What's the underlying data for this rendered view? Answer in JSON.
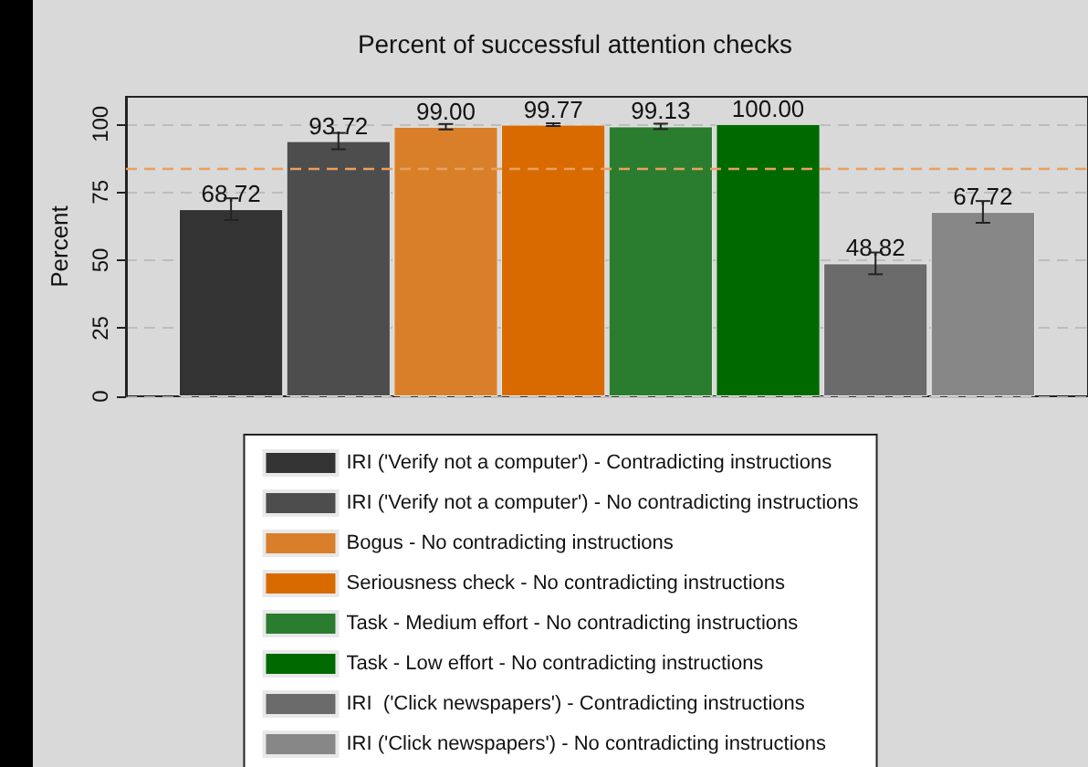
{
  "chart_data": {
    "type": "bar",
    "title": "Percent of successful attention checks",
    "ylabel": "Percent",
    "categories": [
      null
    ],
    "series": [
      {
        "name": "IRI ('Verify not a computer') - Contradicting instructions",
        "color": "#333333",
        "values": [
          68.72
        ],
        "value_labels": [
          "68.72"
        ],
        "errors": [
          4
        ]
      },
      {
        "name": "IRI ('Verify not a computer') - No contradicting instructions",
        "color": "#4d4d4d",
        "values": [
          93.72
        ],
        "value_labels": [
          "93.72"
        ],
        "errors": [
          3
        ]
      },
      {
        "name": "Bogus - No contradicting instructions",
        "color": "#d97f2a",
        "values": [
          99.0
        ],
        "value_labels": [
          "99.00"
        ],
        "errors": [
          1
        ]
      },
      {
        "name": "Seriousness check - No contradicting instructions",
        "color": "#d96a00",
        "values": [
          99.77
        ],
        "value_labels": [
          "99.77"
        ],
        "errors": [
          0.5
        ]
      },
      {
        "name": "Task - Medium effort - No contradicting instructions",
        "color": "#2a7d2e",
        "values": [
          99.13
        ],
        "value_labels": [
          "99.13"
        ],
        "errors": [
          1
        ]
      },
      {
        "name": "Task - Low effort - No contradicting instructions",
        "color": "#006a00",
        "values": [
          100.0
        ],
        "value_labels": [
          "100.00"
        ],
        "errors": [
          0
        ]
      },
      {
        "name": "IRI  ('Click newspapers') - Contradicting instructions",
        "color": "#6b6b6b",
        "values": [
          48.82
        ],
        "value_labels": [
          "48.82"
        ],
        "errors": [
          4
        ]
      },
      {
        "name": "IRI ('Click newspapers') - No contradicting instructions",
        "color": "#878787",
        "values": [
          67.72
        ],
        "value_labels": [
          "67.72"
        ],
        "errors": [
          4
        ]
      }
    ],
    "ylim": [
      0,
      110
    ],
    "yticks": [
      0,
      25,
      50,
      75,
      100
    ],
    "grid": "y",
    "legend": "bottom",
    "ref_lines": [
      {
        "axis": "y",
        "value": 84,
        "color": "#e8a060",
        "line_style": "dashed"
      }
    ]
  }
}
